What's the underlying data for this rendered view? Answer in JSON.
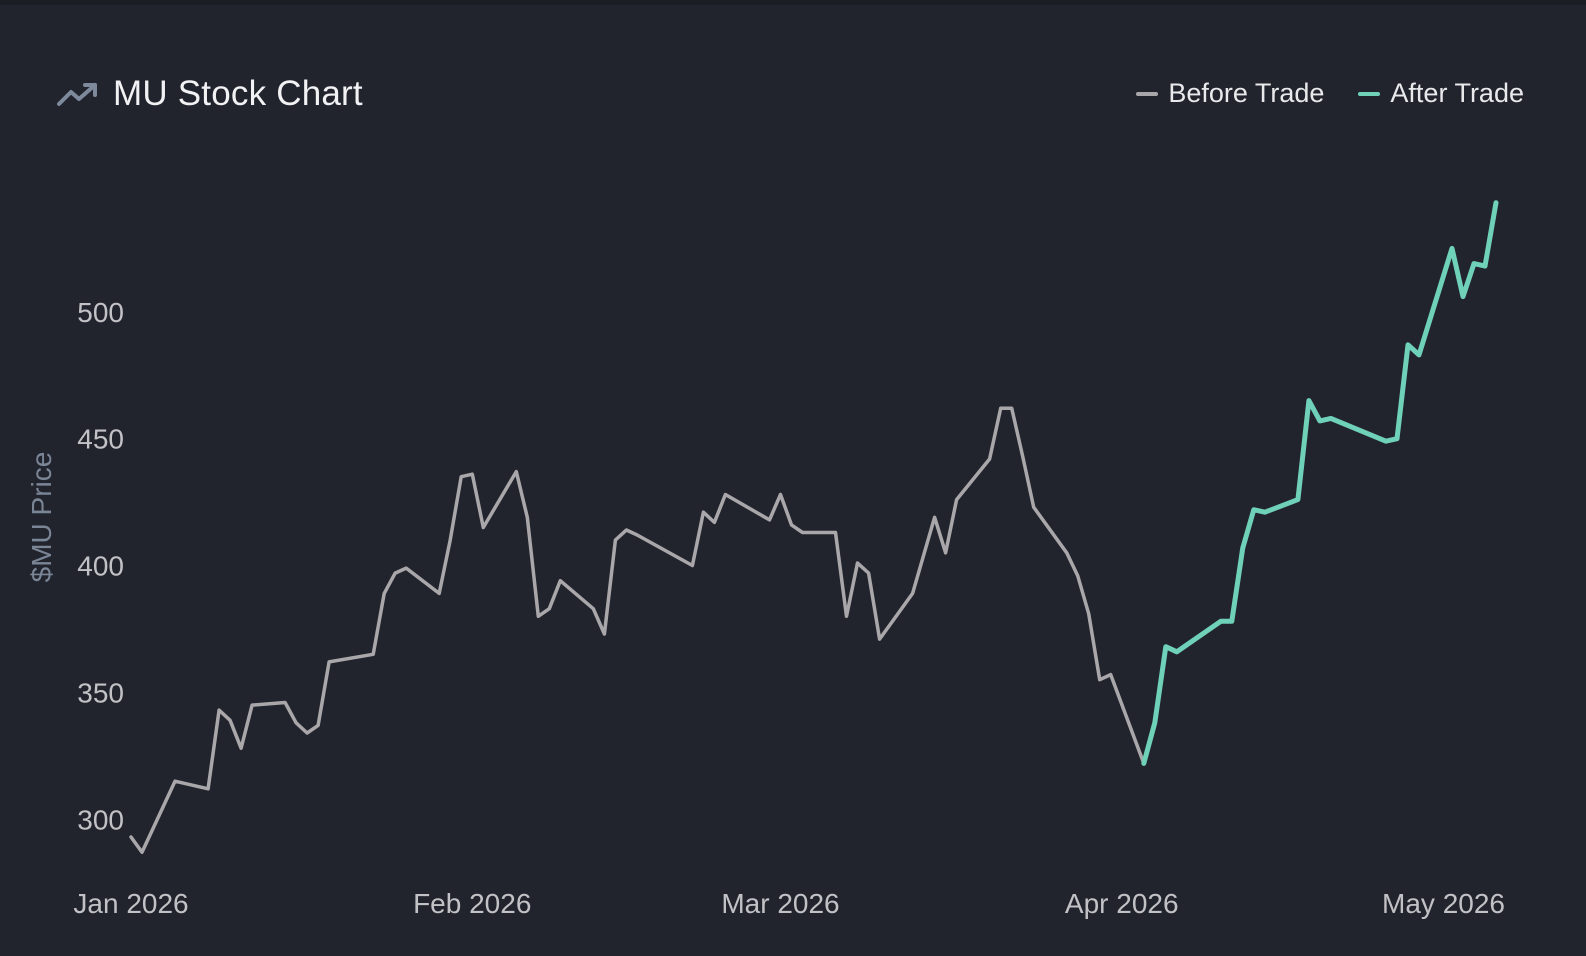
{
  "header": {
    "title": "MU Stock Chart",
    "icon": "trending-up-icon"
  },
  "legend": {
    "before_label": "Before Trade",
    "after_label": "After Trade"
  },
  "colors": {
    "background": "#21242d",
    "before": "#aaa7aa",
    "after": "#6fd1b7",
    "tick_text": "#c2c2c6",
    "axis_label": "#7a8596"
  },
  "chart_data": {
    "type": "line",
    "title": "MU Stock Chart",
    "ylabel": "$MU Price",
    "xlabel": "",
    "ylim": [
      280,
      548
    ],
    "yticks": [
      300,
      350,
      400,
      450,
      500
    ],
    "xticks": [
      "Jan 2026",
      "Feb 2026",
      "Mar 2026",
      "Apr 2026",
      "May 2026"
    ],
    "xlim": [
      "2026-01-01",
      "2026-05-02"
    ],
    "grid": false,
    "legend_position": "top-right",
    "series": [
      {
        "name": "Before Trade",
        "color": "#aaa7aa",
        "points": [
          [
            "2026-01-01",
            293
          ],
          [
            "2026-01-02",
            287
          ],
          [
            "2026-01-05",
            315
          ],
          [
            "2026-01-08",
            312
          ],
          [
            "2026-01-09",
            343
          ],
          [
            "2026-01-10",
            339
          ],
          [
            "2026-01-11",
            328
          ],
          [
            "2026-01-12",
            345
          ],
          [
            "2026-01-15",
            346
          ],
          [
            "2026-01-16",
            338
          ],
          [
            "2026-01-17",
            334
          ],
          [
            "2026-01-18",
            337
          ],
          [
            "2026-01-19",
            362
          ],
          [
            "2026-01-23",
            365
          ],
          [
            "2026-01-24",
            389
          ],
          [
            "2026-01-25",
            397
          ],
          [
            "2026-01-26",
            399
          ],
          [
            "2026-01-29",
            389
          ],
          [
            "2026-01-30",
            410
          ],
          [
            "2026-01-31",
            435
          ],
          [
            "2026-02-01",
            436
          ],
          [
            "2026-02-02",
            415
          ],
          [
            "2026-02-05",
            437
          ],
          [
            "2026-02-06",
            419
          ],
          [
            "2026-02-07",
            380
          ],
          [
            "2026-02-08",
            383
          ],
          [
            "2026-02-09",
            394
          ],
          [
            "2026-02-12",
            383
          ],
          [
            "2026-02-13",
            373
          ],
          [
            "2026-02-14",
            410
          ],
          [
            "2026-02-15",
            414
          ],
          [
            "2026-02-16",
            412
          ],
          [
            "2026-02-21",
            400
          ],
          [
            "2026-02-22",
            421
          ],
          [
            "2026-02-23",
            417
          ],
          [
            "2026-02-24",
            428
          ],
          [
            "2026-02-28",
            418
          ],
          [
            "2026-03-01",
            428
          ],
          [
            "2026-03-02",
            416
          ],
          [
            "2026-03-03",
            413
          ],
          [
            "2026-03-06",
            413
          ],
          [
            "2026-03-07",
            380
          ],
          [
            "2026-03-08",
            401
          ],
          [
            "2026-03-09",
            397
          ],
          [
            "2026-03-10",
            371
          ],
          [
            "2026-03-13",
            389
          ],
          [
            "2026-03-15",
            419
          ],
          [
            "2026-03-16",
            405
          ],
          [
            "2026-03-17",
            426
          ],
          [
            "2026-03-20",
            442
          ],
          [
            "2026-03-21",
            462
          ],
          [
            "2026-03-22",
            462
          ],
          [
            "2026-03-23",
            443
          ],
          [
            "2026-03-24",
            423
          ],
          [
            "2026-03-27",
            405
          ],
          [
            "2026-03-28",
            396
          ],
          [
            "2026-03-29",
            381
          ],
          [
            "2026-03-30",
            355
          ],
          [
            "2026-03-31",
            357
          ],
          [
            "2026-04-03",
            322
          ]
        ]
      },
      {
        "name": "After Trade",
        "color": "#6fd1b7",
        "points": [
          [
            "2026-04-03",
            322
          ],
          [
            "2026-04-04",
            338
          ],
          [
            "2026-04-05",
            368
          ],
          [
            "2026-04-06",
            366
          ],
          [
            "2026-04-10",
            378
          ],
          [
            "2026-04-11",
            378
          ],
          [
            "2026-04-12",
            407
          ],
          [
            "2026-04-13",
            422
          ],
          [
            "2026-04-14",
            421
          ],
          [
            "2026-04-17",
            426
          ],
          [
            "2026-04-18",
            465
          ],
          [
            "2026-04-19",
            457
          ],
          [
            "2026-04-20",
            458
          ],
          [
            "2026-04-25",
            449
          ],
          [
            "2026-04-26",
            450
          ],
          [
            "2026-04-27",
            487
          ],
          [
            "2026-04-28",
            483
          ],
          [
            "2026-04-29",
            497
          ],
          [
            "2026-05-01",
            525
          ],
          [
            "2026-05-02",
            506
          ],
          [
            "2026-05-03",
            519
          ],
          [
            "2026-05-04",
            518
          ],
          [
            "2026-05-05",
            543
          ]
        ]
      }
    ]
  }
}
